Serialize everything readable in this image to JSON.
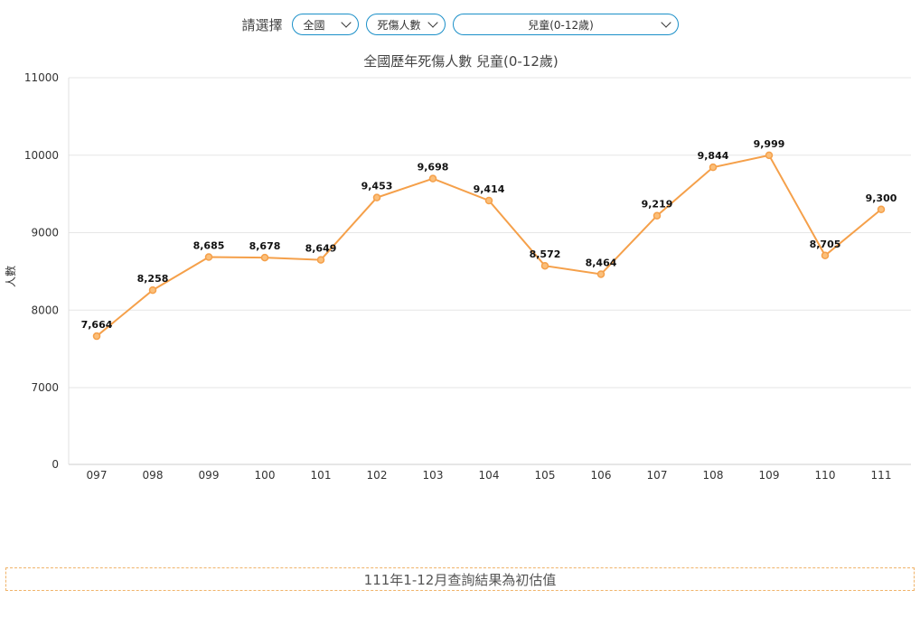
{
  "filters": {
    "label": "請選擇",
    "region": "全國",
    "metric": "死傷人數",
    "age_group": "兒童(0-12歲)"
  },
  "chart_data": {
    "type": "line",
    "title": "全國歷年死傷人數 兒童(0-12歲)",
    "xlabel": "",
    "ylabel": "人數",
    "categories": [
      "097",
      "098",
      "099",
      "100",
      "101",
      "102",
      "103",
      "104",
      "105",
      "106",
      "107",
      "108",
      "109",
      "110",
      "111"
    ],
    "series": [
      {
        "values": [
          7664,
          8258,
          8685,
          8678,
          8649,
          9453,
          9698,
          9414,
          8572,
          8464,
          9219,
          9844,
          9999,
          8705,
          9300
        ]
      }
    ],
    "data_labels": [
      "7,664",
      "8,258",
      "8,685",
      "8,678",
      "8,649",
      "9,453",
      "9,698",
      "9,414",
      "8,572",
      "8,464",
      "9,219",
      "9,844",
      "9,999",
      "8,705",
      "9,300"
    ],
    "yticks": [
      0,
      7000,
      8000,
      9000,
      10000,
      11000
    ],
    "ylim": [
      6500,
      11000
    ],
    "y_axis_break": true,
    "grid": true,
    "line_color": "#f5a04a"
  },
  "note": "111年1-12月查詢結果為初估值"
}
